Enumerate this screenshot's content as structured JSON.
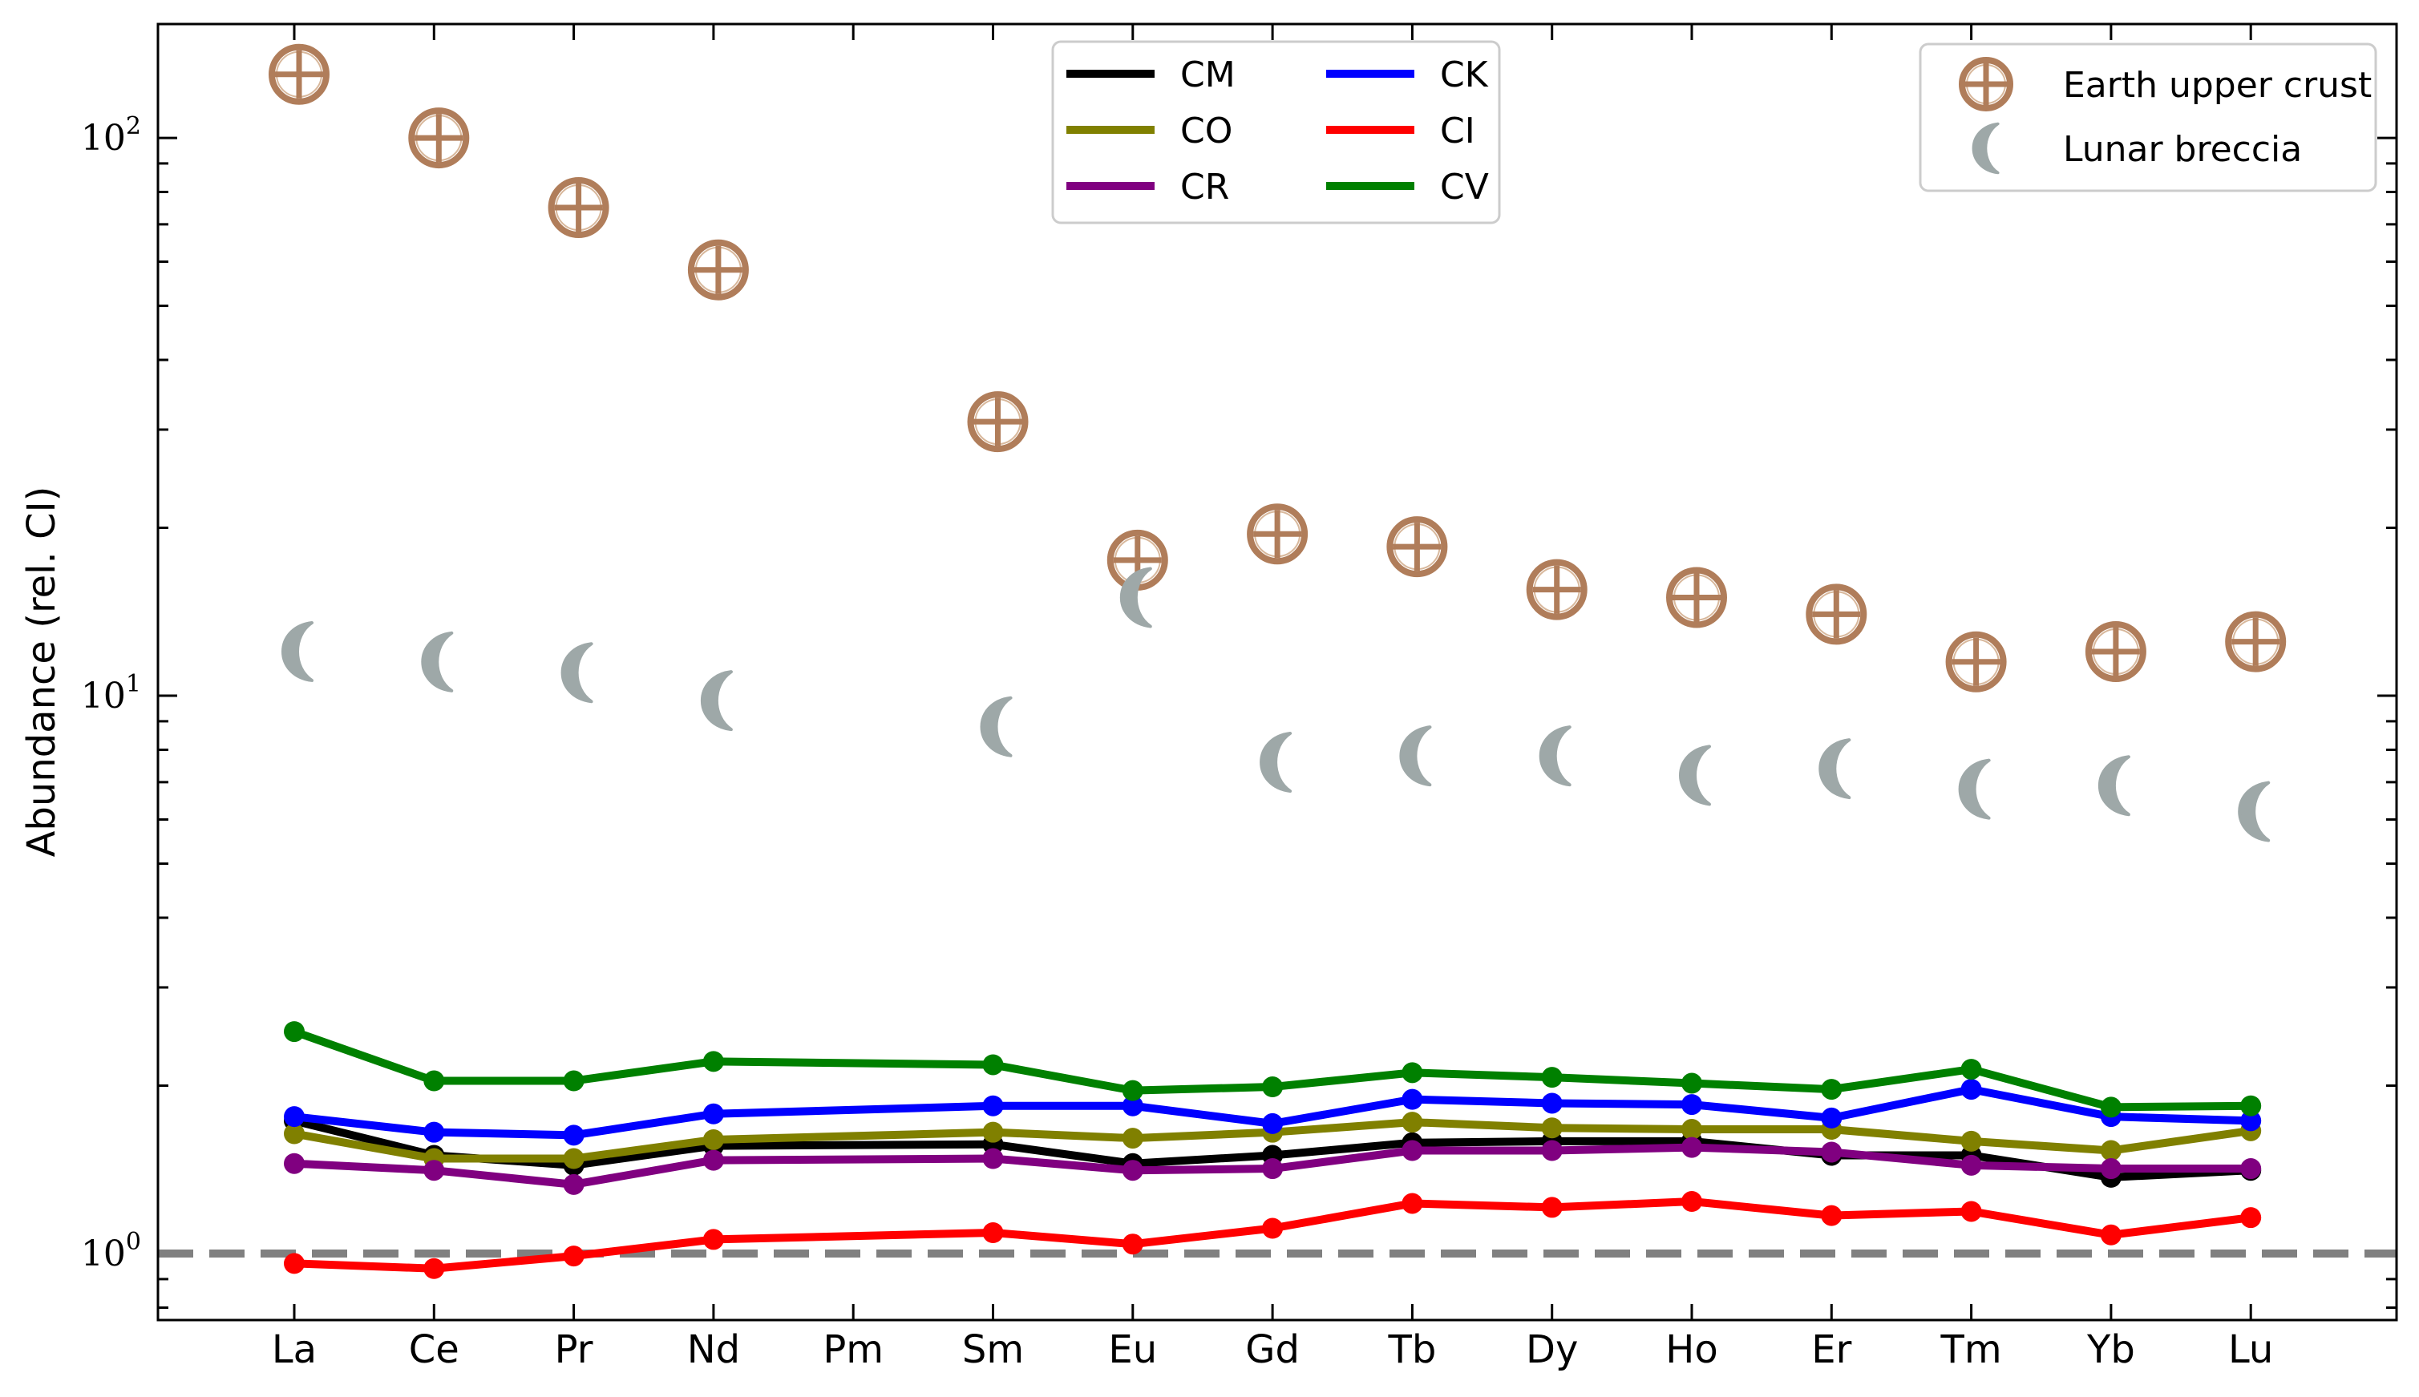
{
  "chart_data": {
    "type": "line",
    "ylabel": "Abundance (rel. CI)",
    "xlabel": "",
    "yscale": "log",
    "ylim": [
      0.76,
      160
    ],
    "yticks": [
      {
        "value": 1,
        "base": "10",
        "exp": "0"
      },
      {
        "value": 10,
        "base": "10",
        "exp": "1"
      },
      {
        "value": 100,
        "base": "10",
        "exp": "2"
      }
    ],
    "categories": [
      "La",
      "Ce",
      "Pr",
      "Nd",
      "Pm",
      "Sm",
      "Eu",
      "Gd",
      "Tb",
      "Dy",
      "Ho",
      "Er",
      "Tm",
      "Yb",
      "Lu"
    ],
    "reference_line": {
      "value": 1.0,
      "style": "dashed",
      "color": "#808080"
    },
    "series": [
      {
        "name": "CM",
        "color": "#000000",
        "values": [
          1.73,
          1.5,
          1.44,
          1.56,
          null,
          1.57,
          1.45,
          1.5,
          1.58,
          1.59,
          1.59,
          1.5,
          1.5,
          1.37,
          1.41
        ]
      },
      {
        "name": "CO",
        "color": "#808000",
        "values": [
          1.64,
          1.48,
          1.48,
          1.6,
          null,
          1.65,
          1.61,
          1.65,
          1.72,
          1.68,
          1.67,
          1.67,
          1.59,
          1.53,
          1.66
        ]
      },
      {
        "name": "CR",
        "color": "#800080",
        "values": [
          1.45,
          1.41,
          1.33,
          1.47,
          null,
          1.48,
          1.41,
          1.42,
          1.53,
          1.53,
          1.55,
          1.52,
          1.44,
          1.42,
          1.42
        ]
      },
      {
        "name": "CK",
        "color": "#0000ff",
        "values": [
          1.76,
          1.65,
          1.63,
          1.78,
          null,
          1.84,
          1.84,
          1.71,
          1.89,
          1.86,
          1.85,
          1.75,
          1.97,
          1.76,
          1.73
        ]
      },
      {
        "name": "CI",
        "color": "#ff0000",
        "values": [
          0.96,
          0.94,
          0.99,
          1.06,
          null,
          1.09,
          1.04,
          1.11,
          1.23,
          1.21,
          1.24,
          1.17,
          1.19,
          1.08,
          1.16
        ]
      },
      {
        "name": "CV",
        "color": "#008000",
        "values": [
          2.5,
          2.04,
          2.04,
          2.21,
          null,
          2.18,
          1.96,
          1.99,
          2.11,
          2.07,
          2.02,
          1.97,
          2.14,
          1.83,
          1.84
        ]
      }
    ],
    "marker_series": [
      {
        "name": "Earth upper crust",
        "color": "#b07d5a",
        "icon": "circle-plus-icon",
        "values": [
          130,
          100,
          75,
          58,
          null,
          31,
          17.5,
          19.5,
          18.5,
          15.5,
          15,
          14,
          11.5,
          12,
          12.5
        ]
      },
      {
        "name": "Lunar breccia",
        "color": "#9ea8a8",
        "icon": "crescent-moon-icon",
        "values": [
          12,
          11.5,
          11,
          9.8,
          null,
          8.8,
          15,
          7.6,
          7.8,
          7.8,
          7.2,
          7.4,
          6.8,
          6.9,
          6.2
        ]
      }
    ],
    "legends": [
      {
        "position": "top-center",
        "columns": 2,
        "entries": [
          "CM",
          "CO",
          "CR",
          "CK",
          "CI",
          "CV"
        ]
      },
      {
        "position": "top-right",
        "columns": 1,
        "entries": [
          "Earth upper crust",
          "Lunar breccia"
        ]
      }
    ]
  }
}
